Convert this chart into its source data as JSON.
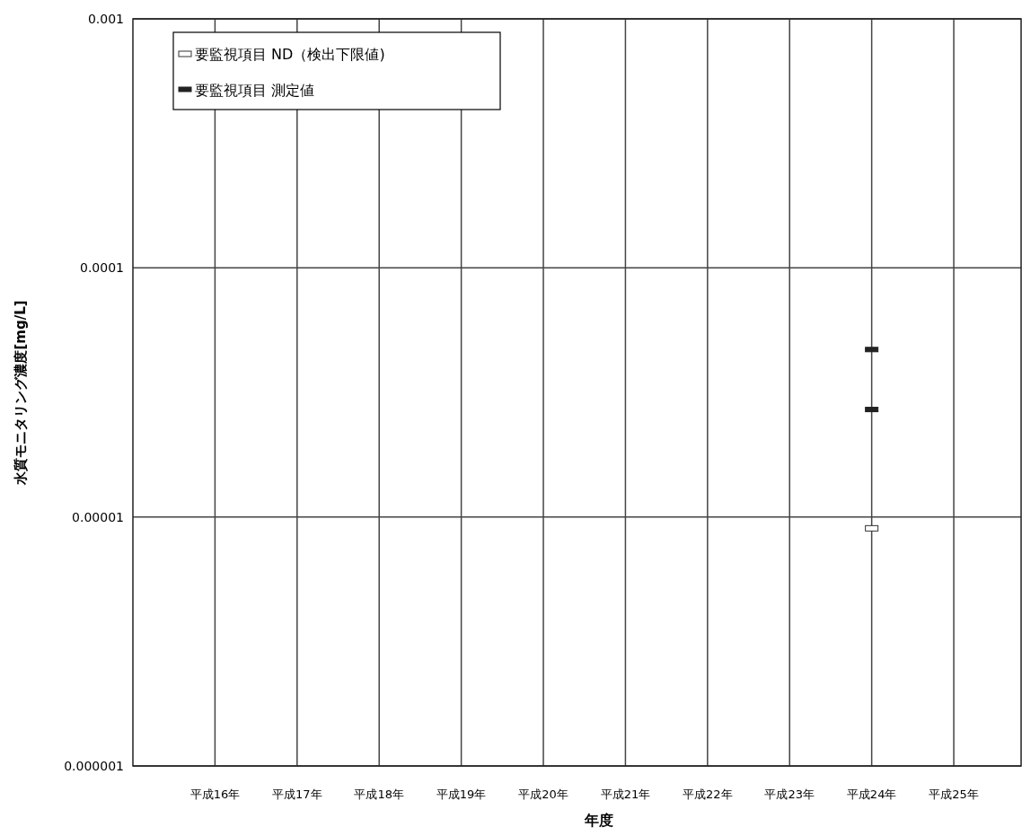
{
  "chart_data": {
    "type": "scatter",
    "xlabel": "年度",
    "ylabel": "水質モニタリング濃度[mg/L]",
    "categories": [
      "平成16年",
      "平成17年",
      "平成18年",
      "平成19年",
      "平成20年",
      "平成21年",
      "平成22年",
      "平成23年",
      "平成24年",
      "平成25年"
    ],
    "series": [
      {
        "name": "要監視項目 ND（検出下限値)",
        "color": "#ffffff",
        "x": [
          "平成24年"
        ],
        "values": [
          9e-06
        ]
      },
      {
        "name": "要監視項目 測定値",
        "color": "#222222",
        "x": [
          "平成24年",
          "平成24年"
        ],
        "values": [
          4.7e-05,
          2.7e-05
        ]
      }
    ],
    "log": true,
    "ylim": [
      1e-06,
      0.001
    ],
    "yticks": [
      {
        "value": 1e-06,
        "label": "0.000001"
      },
      {
        "value": 1e-05,
        "label": "0.00001"
      },
      0.0001,
      0.001
    ],
    "grid": true,
    "legend": "top left"
  }
}
